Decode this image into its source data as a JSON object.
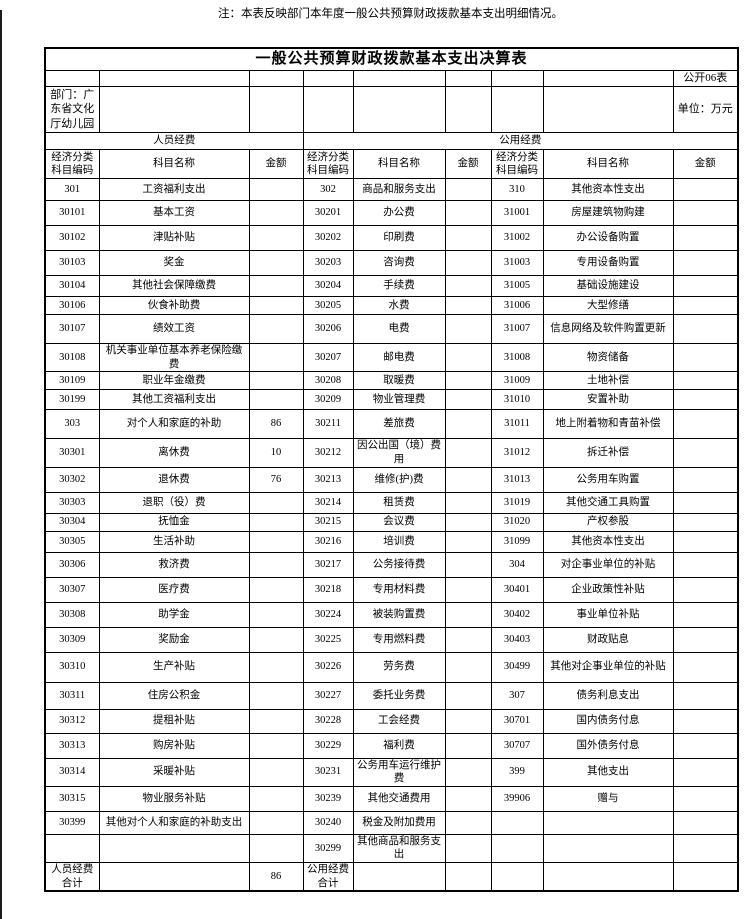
{
  "page": {
    "title": "一般公共预算财政拨款基本支出决算表",
    "form_code": "公开06表",
    "department_label": "部门：广东省文化厅幼儿园",
    "unit_label": "单位：万元",
    "note": "注：本表反映部门本年度一般公共预算财政拨款基本支出明细情况。"
  },
  "table": {
    "section_headers": {
      "person": "人员经费",
      "public": "公用经费"
    },
    "column_headers": {
      "code": "经济分类科目编码",
      "name": "科目名称",
      "amount": "金额"
    },
    "person": [
      {
        "code": "301",
        "name": "工资福利支出",
        "amount": ""
      },
      {
        "code": "30101",
        "name": "基本工资",
        "amount": ""
      },
      {
        "code": "30102",
        "name": "津贴补贴",
        "amount": ""
      },
      {
        "code": "30103",
        "name": "奖金",
        "amount": ""
      },
      {
        "code": "30104",
        "name": "其他社会保障缴费",
        "amount": ""
      },
      {
        "code": "30106",
        "name": "伙食补助费",
        "amount": ""
      },
      {
        "code": "30107",
        "name": "绩效工资",
        "amount": ""
      },
      {
        "code": "30108",
        "name": "机关事业单位基本养老保险缴费",
        "amount": ""
      },
      {
        "code": "30109",
        "name": "职业年金缴费",
        "amount": ""
      },
      {
        "code": "30199",
        "name": "其他工资福利支出",
        "amount": ""
      },
      {
        "code": "303",
        "name": "对个人和家庭的补助",
        "amount": "86"
      },
      {
        "code": "30301",
        "name": "离休费",
        "amount": "10"
      },
      {
        "code": "30302",
        "name": "退休费",
        "amount": "76"
      },
      {
        "code": "30303",
        "name": "退职（役）费",
        "amount": ""
      },
      {
        "code": "30304",
        "name": "抚恤金",
        "amount": ""
      },
      {
        "code": "30305",
        "name": "生活补助",
        "amount": ""
      },
      {
        "code": "30306",
        "name": "救济费",
        "amount": ""
      },
      {
        "code": "30307",
        "name": "医疗费",
        "amount": ""
      },
      {
        "code": "30308",
        "name": "助学金",
        "amount": ""
      },
      {
        "code": "30309",
        "name": "奖励金",
        "amount": ""
      },
      {
        "code": "30310",
        "name": "生产补贴",
        "amount": ""
      },
      {
        "code": "30311",
        "name": "住房公积金",
        "amount": ""
      },
      {
        "code": "30312",
        "name": "提租补贴",
        "amount": ""
      },
      {
        "code": "30313",
        "name": "购房补贴",
        "amount": ""
      },
      {
        "code": "30314",
        "name": "采暖补贴",
        "amount": ""
      },
      {
        "code": "30315",
        "name": "物业服务补贴",
        "amount": ""
      },
      {
        "code": "30399",
        "name": "其他对个人和家庭的补助支出",
        "amount": ""
      },
      {
        "code": "",
        "name": "",
        "amount": ""
      },
      {
        "code": "人员经费合计",
        "name": "",
        "amount": "86"
      }
    ],
    "public": [
      {
        "code": "302",
        "name": "商品和服务支出",
        "amount": ""
      },
      {
        "code": "30201",
        "name": "办公费",
        "amount": ""
      },
      {
        "code": "30202",
        "name": "印刷费",
        "amount": ""
      },
      {
        "code": "30203",
        "name": "咨询费",
        "amount": ""
      },
      {
        "code": "30204",
        "name": "手续费",
        "amount": ""
      },
      {
        "code": "30205",
        "name": "水费",
        "amount": ""
      },
      {
        "code": "30206",
        "name": "电费",
        "amount": ""
      },
      {
        "code": "30207",
        "name": "邮电费",
        "amount": ""
      },
      {
        "code": "30208",
        "name": "取暖费",
        "amount": ""
      },
      {
        "code": "30209",
        "name": "物业管理费",
        "amount": ""
      },
      {
        "code": "30211",
        "name": "差旅费",
        "amount": ""
      },
      {
        "code": "30212",
        "name": "因公出国（境）费用",
        "amount": ""
      },
      {
        "code": "30213",
        "name": "维修(护)费",
        "amount": ""
      },
      {
        "code": "30214",
        "name": "租赁费",
        "amount": ""
      },
      {
        "code": "30215",
        "name": "会议费",
        "amount": ""
      },
      {
        "code": "30216",
        "name": "培训费",
        "amount": ""
      },
      {
        "code": "30217",
        "name": "公务接待费",
        "amount": ""
      },
      {
        "code": "30218",
        "name": "专用材料费",
        "amount": ""
      },
      {
        "code": "30224",
        "name": "被装购置费",
        "amount": ""
      },
      {
        "code": "30225",
        "name": "专用燃料费",
        "amount": ""
      },
      {
        "code": "30226",
        "name": "劳务费",
        "amount": ""
      },
      {
        "code": "30227",
        "name": "委托业务费",
        "amount": ""
      },
      {
        "code": "30228",
        "name": "工会经费",
        "amount": ""
      },
      {
        "code": "30229",
        "name": "福利费",
        "amount": ""
      },
      {
        "code": "30231",
        "name": "公务用车运行维护费",
        "amount": ""
      },
      {
        "code": "30239",
        "name": "其他交通费用",
        "amount": ""
      },
      {
        "code": "30240",
        "name": "税金及附加费用",
        "amount": ""
      },
      {
        "code": "30299",
        "name": "其他商品和服务支出",
        "amount": ""
      },
      {
        "code": "公用经费合计",
        "name": "",
        "amount": ""
      }
    ],
    "capital": [
      {
        "code": "310",
        "name": "其他资本性支出",
        "amount": ""
      },
      {
        "code": "31001",
        "name": "房屋建筑物购建",
        "amount": ""
      },
      {
        "code": "31002",
        "name": "办公设备购置",
        "amount": ""
      },
      {
        "code": "31003",
        "name": "专用设备购置",
        "amount": ""
      },
      {
        "code": "31005",
        "name": "基础设施建设",
        "amount": ""
      },
      {
        "code": "31006",
        "name": "大型修缮",
        "amount": ""
      },
      {
        "code": "31007",
        "name": "信息网络及软件购置更新",
        "amount": ""
      },
      {
        "code": "31008",
        "name": "物资储备",
        "amount": ""
      },
      {
        "code": "31009",
        "name": "土地补偿",
        "amount": ""
      },
      {
        "code": "31010",
        "name": "安置补助",
        "amount": ""
      },
      {
        "code": "31011",
        "name": "地上附着物和青苗补偿",
        "amount": ""
      },
      {
        "code": "31012",
        "name": "拆迁补偿",
        "amount": ""
      },
      {
        "code": "31013",
        "name": "公务用车购置",
        "amount": ""
      },
      {
        "code": "31019",
        "name": "其他交通工具购置",
        "amount": ""
      },
      {
        "code": "31020",
        "name": "产权参股",
        "amount": ""
      },
      {
        "code": "31099",
        "name": "其他资本性支出",
        "amount": ""
      },
      {
        "code": "304",
        "name": "对企事业单位的补贴",
        "amount": ""
      },
      {
        "code": "30401",
        "name": "企业政策性补贴",
        "amount": ""
      },
      {
        "code": "30402",
        "name": "事业单位补贴",
        "amount": ""
      },
      {
        "code": "30403",
        "name": "财政贴息",
        "amount": ""
      },
      {
        "code": "30499",
        "name": "其他对企事业单位的补贴",
        "amount": ""
      },
      {
        "code": "307",
        "name": "债务利息支出",
        "amount": ""
      },
      {
        "code": "30701",
        "name": "国内债务付息",
        "amount": ""
      },
      {
        "code": "30707",
        "name": "国外债务付息",
        "amount": ""
      },
      {
        "code": "399",
        "name": "其他支出",
        "amount": ""
      },
      {
        "code": "39906",
        "name": "赠与",
        "amount": ""
      },
      {
        "code": "",
        "name": "",
        "amount": ""
      },
      {
        "code": "",
        "name": "",
        "amount": ""
      },
      {
        "code": "",
        "name": "",
        "amount": ""
      }
    ]
  }
}
